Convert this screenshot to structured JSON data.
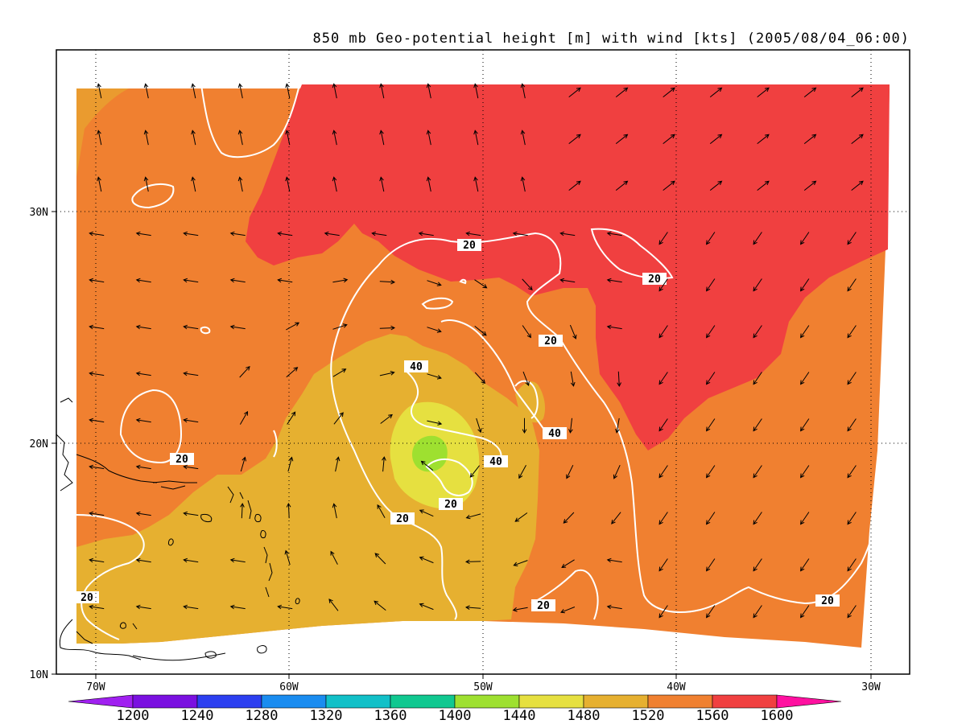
{
  "title": "850 mb Geo-potential height [m] with wind [kts] (2005/08/04_06:00)",
  "axes": {
    "x_ticks": [
      "70W",
      "60W",
      "50W",
      "40W",
      "30W"
    ],
    "y_ticks": [
      "30N",
      "20N",
      "10N"
    ]
  },
  "colorbar": {
    "labels": [
      "1200",
      "1240",
      "1280",
      "1320",
      "1360",
      "1400",
      "1440",
      "1480",
      "1520",
      "1560",
      "1600"
    ],
    "colors": [
      "#a020f0",
      "#7a10e0",
      "#2c3ff0",
      "#1a8cf0",
      "#12c0c8",
      "#10c890",
      "#9ee030",
      "#e6e040",
      "#e6b030",
      "#f08030",
      "#f04040",
      "#ff10a0"
    ]
  },
  "contour_labels": [
    "20",
    "20",
    "40",
    "20",
    "40",
    "40",
    "20",
    "20",
    "20",
    "20",
    "20",
    "20"
  ],
  "chart_data": {
    "type": "heatmap",
    "title": "850 mb Geo-potential height [m] with wind [kts] (2005/08/04_06:00)",
    "x_range": [
      "72W",
      "29W"
    ],
    "y_range": [
      "10N",
      "37N"
    ],
    "filled_levels_m": [
      1200,
      1240,
      1280,
      1320,
      1360,
      1400,
      1440,
      1480,
      1520,
      1560,
      1600
    ],
    "wind_speed_contours_kts": [
      20,
      40
    ],
    "features": {
      "low_center_height_m": 1440
    }
  }
}
